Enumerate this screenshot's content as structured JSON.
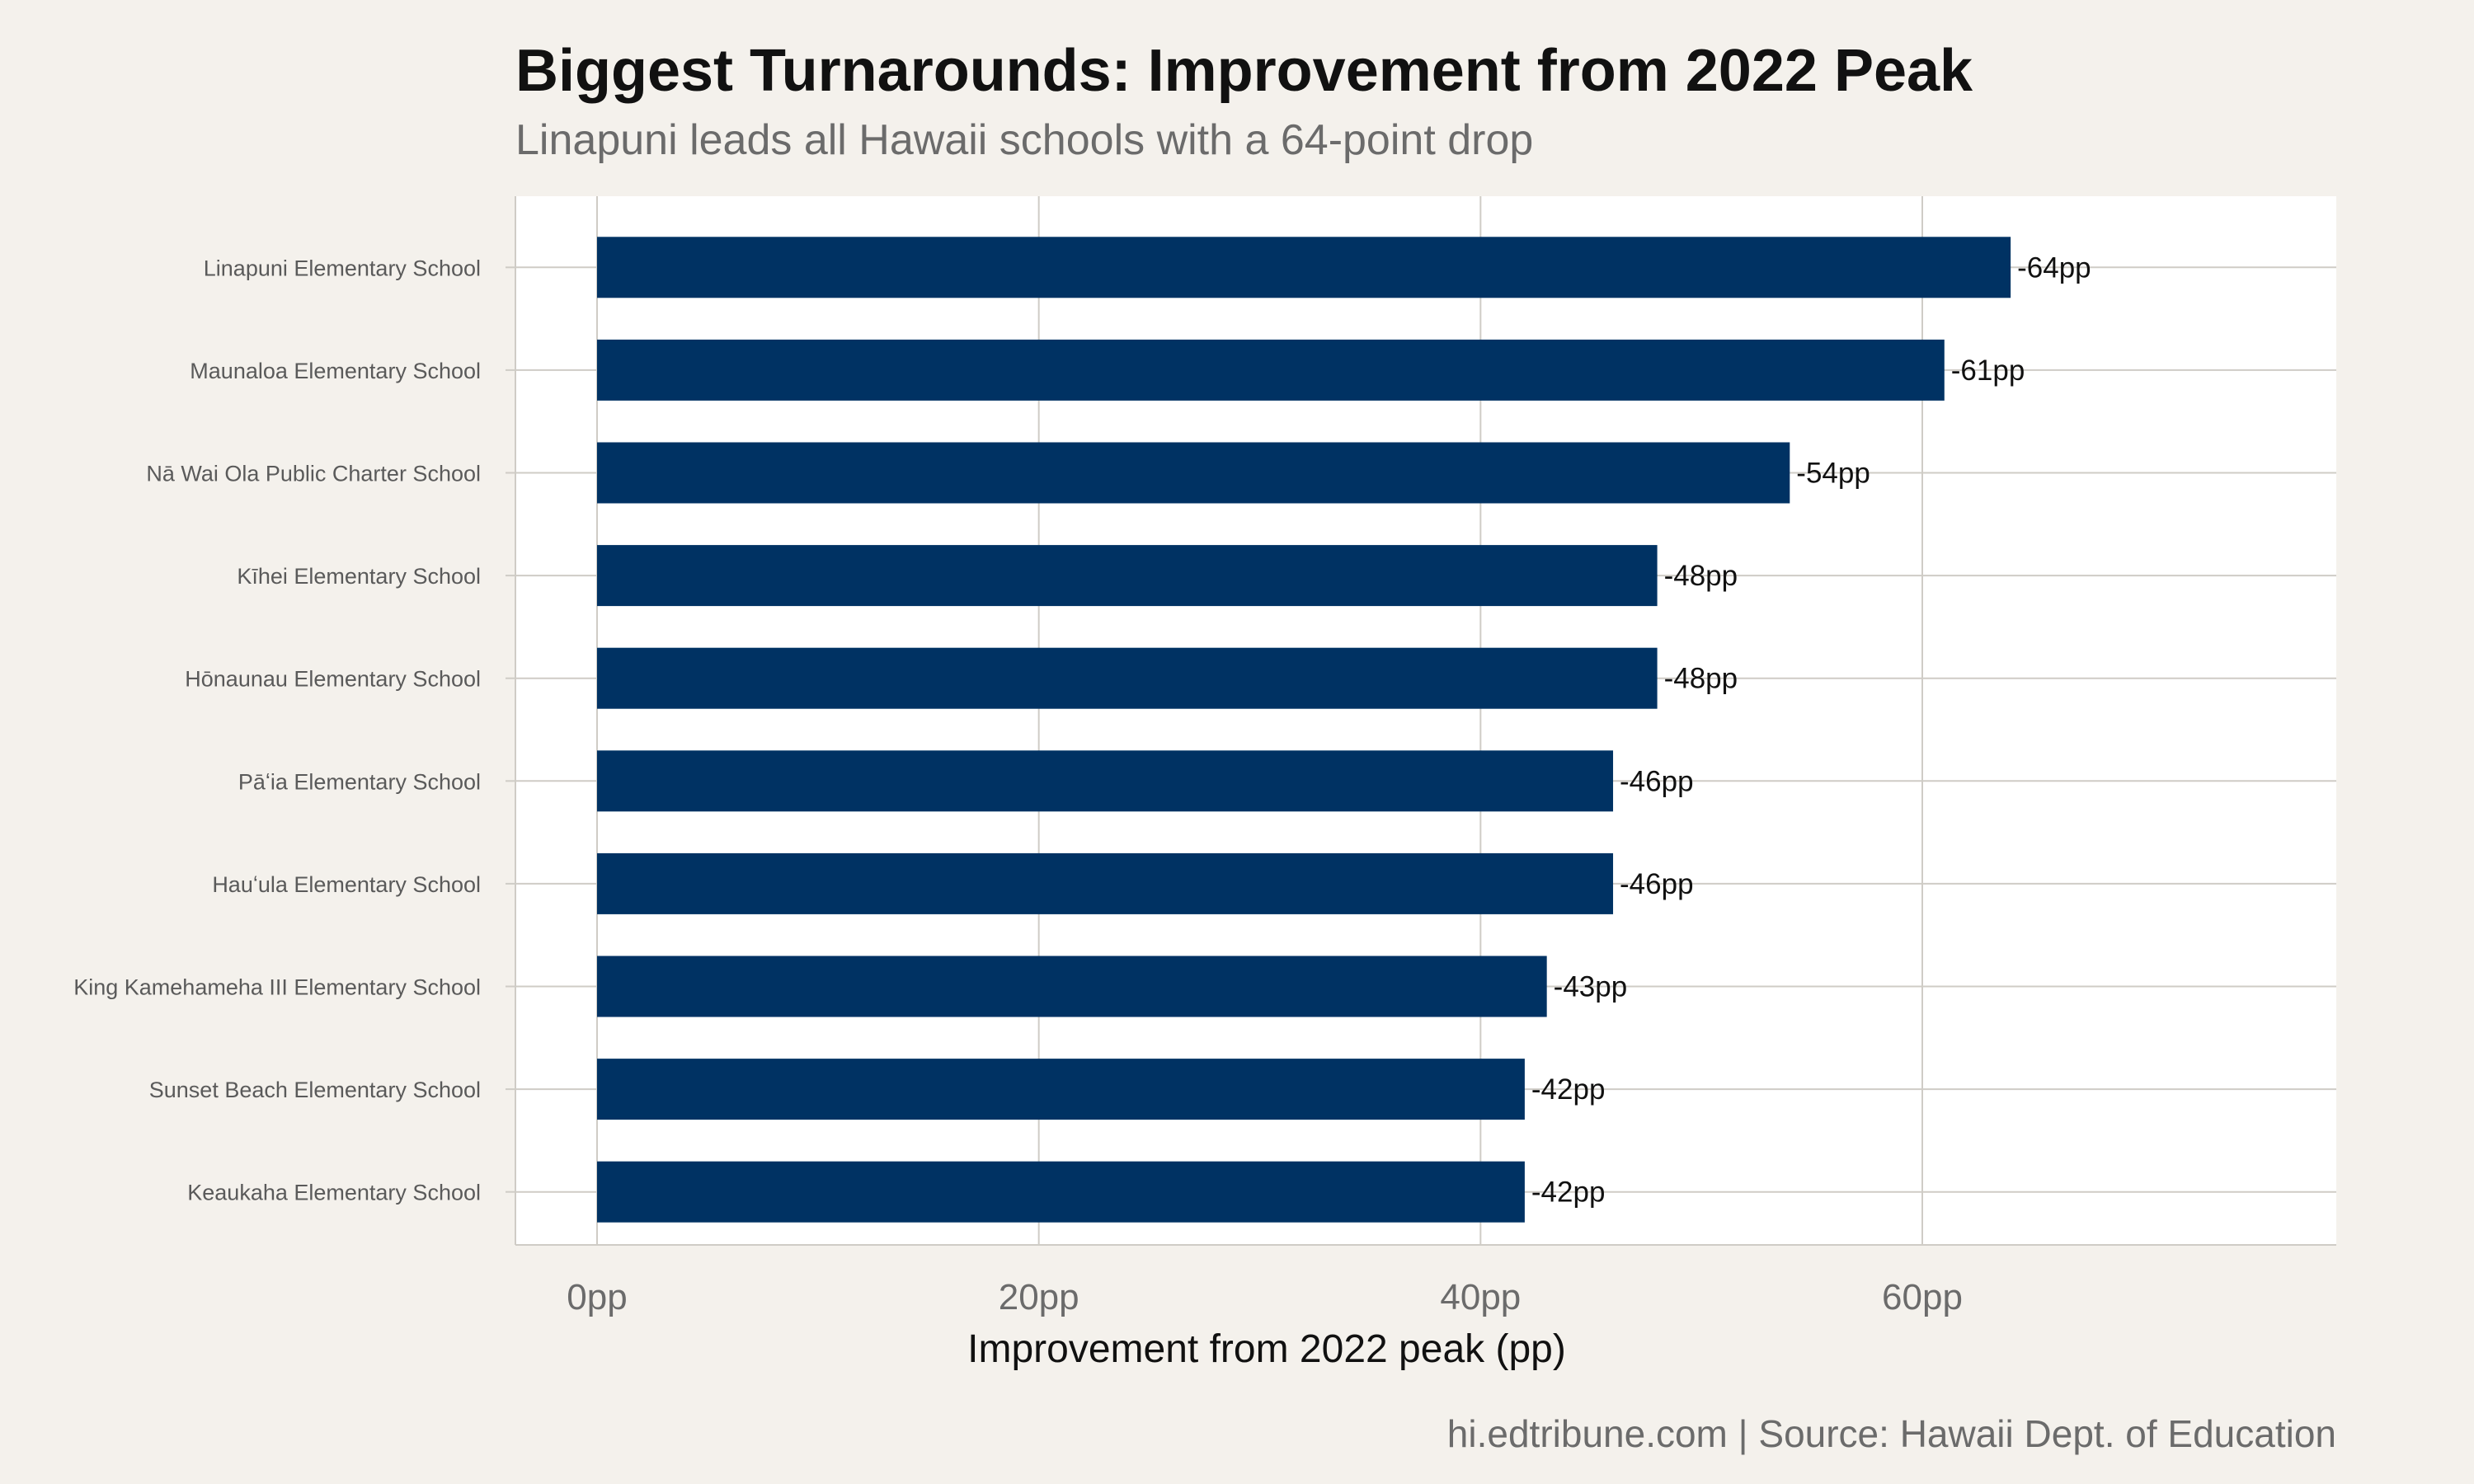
{
  "title": "Biggest Turnarounds: Improvement from 2022 Peak",
  "subtitle": "Linapuni leads all Hawaii schools with a 64-point drop",
  "caption": "hi.edtribune.com | Source: Hawaii Dept. of Education",
  "colors": {
    "bar": "#003263",
    "background": "#f4f1ec",
    "panel": "#ffffff",
    "grid": "#cfccc6"
  },
  "chart_data": {
    "type": "bar",
    "orientation": "horizontal",
    "xlabel": "Improvement from 2022 peak (pp)",
    "ylabel": "",
    "xlim": [
      0,
      78
    ],
    "xticks": [
      {
        "value": 0,
        "label": "0pp"
      },
      {
        "value": 20,
        "label": "20pp"
      },
      {
        "value": 40,
        "label": "40pp"
      },
      {
        "value": 60,
        "label": "60pp"
      }
    ],
    "grid": true,
    "categories": [
      "Linapuni Elementary School",
      "Maunaloa Elementary School",
      "Nā Wai Ola Public Charter School",
      "Kīhei Elementary School",
      "Hōnaunau Elementary School",
      "Pāʻia Elementary School",
      "Hauʻula Elementary School",
      "King Kamehameha III Elementary School",
      "Sunset Beach Elementary School",
      "Keaukaha Elementary School"
    ],
    "values": [
      64,
      61,
      54,
      48,
      48,
      46,
      46,
      43,
      42,
      42
    ],
    "data_labels": [
      "-64pp",
      "-61pp",
      "-54pp",
      "-48pp",
      "-48pp",
      "-46pp",
      "-46pp",
      "-43pp",
      "-42pp",
      "-42pp"
    ]
  }
}
